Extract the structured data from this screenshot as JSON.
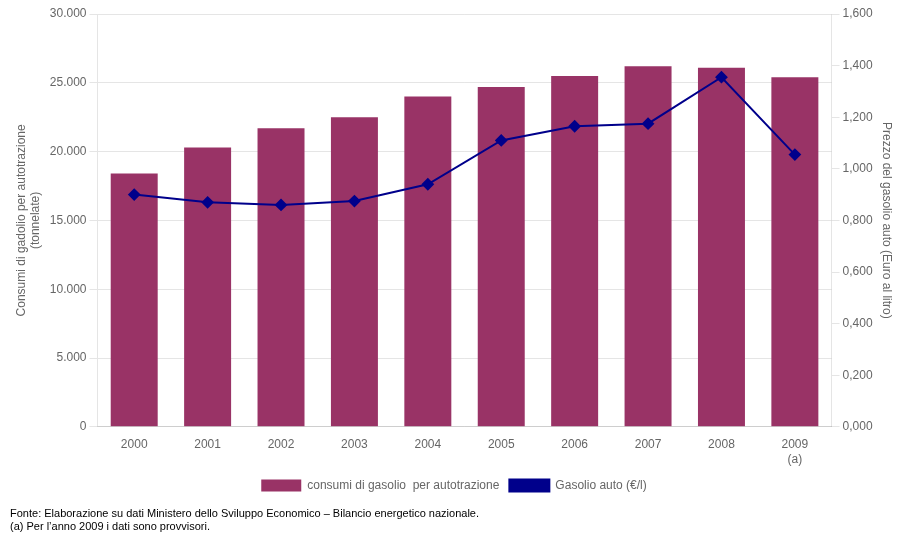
{
  "chart_data": {
    "type": "bar",
    "categories": [
      "2000",
      "2001",
      "2002",
      "2003",
      "2004",
      "2005",
      "2006",
      "2007",
      "2008",
      "2009"
    ],
    "series": [
      {
        "name": "consumi di gasolio  per autotrazione",
        "type": "bar",
        "color": "#993366",
        "values": [
          18400,
          20300,
          21700,
          22500,
          24000,
          24700,
          25500,
          26200,
          26100,
          25400
        ]
      },
      {
        "name": "Gasolio auto (€/l)",
        "type": "line",
        "color": "#00008B",
        "marker": "diamond",
        "axis": "y2",
        "values": [
          0.9,
          0.87,
          0.86,
          0.875,
          0.94,
          1.11,
          1.165,
          1.175,
          1.355,
          1.055
        ]
      }
    ],
    "ylabel": "Consumi di gadolio per autotrazione\n(tonnelate)",
    "y2label": "Prezzo del gasolio auto (Euro al litro)",
    "ylim": [
      0,
      30000
    ],
    "yticks": [
      0,
      {
        "value": 5000,
        "label": "5.000"
      },
      {
        "value": 10000,
        "label": "10.000"
      },
      {
        "value": 15000,
        "label": "15.000"
      },
      {
        "value": 20000,
        "label": "20.000"
      },
      {
        "value": 25000,
        "label": "25.000"
      },
      {
        "value": 30000,
        "label": "30.000"
      }
    ],
    "y2lim": [
      0.0,
      1.6
    ],
    "y2ticks": [
      {
        "value": 0.0,
        "label": "0,000"
      },
      {
        "value": 0.2,
        "label": "0,200"
      },
      {
        "value": 0.4,
        "label": "0,400"
      },
      {
        "value": 0.6,
        "label": "0,600"
      },
      {
        "value": 0.8,
        "label": "0,800"
      },
      {
        "value": 1.0,
        "label": "1,000"
      },
      {
        "value": 1.2,
        "label": "1,200"
      },
      {
        "value": 1.4,
        "label": "1,400"
      },
      {
        "value": 1.6,
        "label": "1,600"
      }
    ],
    "annotations": [
      {
        "category": "2009",
        "text": "(a)"
      }
    ],
    "footnotes": [
      "Fonte: Elaborazione su dati Ministero dello Sviluppo Economico – Bilancio energetico nazionale.",
      "(a) Per l’anno 2009 i dati sono provvisori."
    ],
    "grid": true,
    "legend": "bottom"
  }
}
